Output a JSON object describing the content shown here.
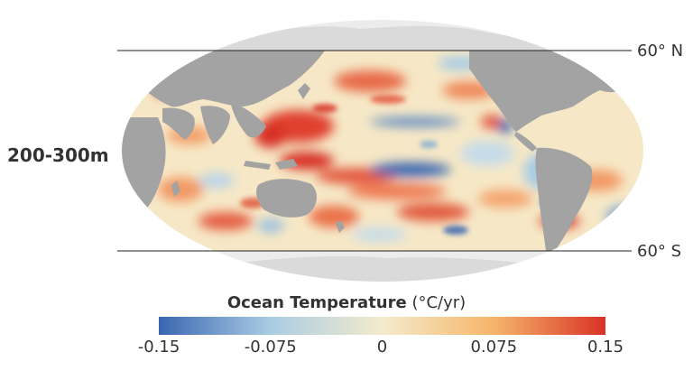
{
  "depth_label": "200-300m",
  "latitude_labels": {
    "north": "60° N",
    "south": "60° S"
  },
  "legend": {
    "title": "Ocean Temperature",
    "unit": "(°C/yr)",
    "ticks": [
      "-0.15",
      "-0.075",
      "0",
      "0.075",
      "0.15"
    ],
    "range": [
      -0.15,
      0.15
    ],
    "colors": [
      "#3a66b1",
      "#a9cce4",
      "#f4ebcd",
      "#f6b56a",
      "#d83226"
    ]
  },
  "map": {
    "land_color": "#a3a3a3",
    "polar_land_color": "#dcdcdc",
    "out_of_range_ocean_color": "#ededed"
  }
}
